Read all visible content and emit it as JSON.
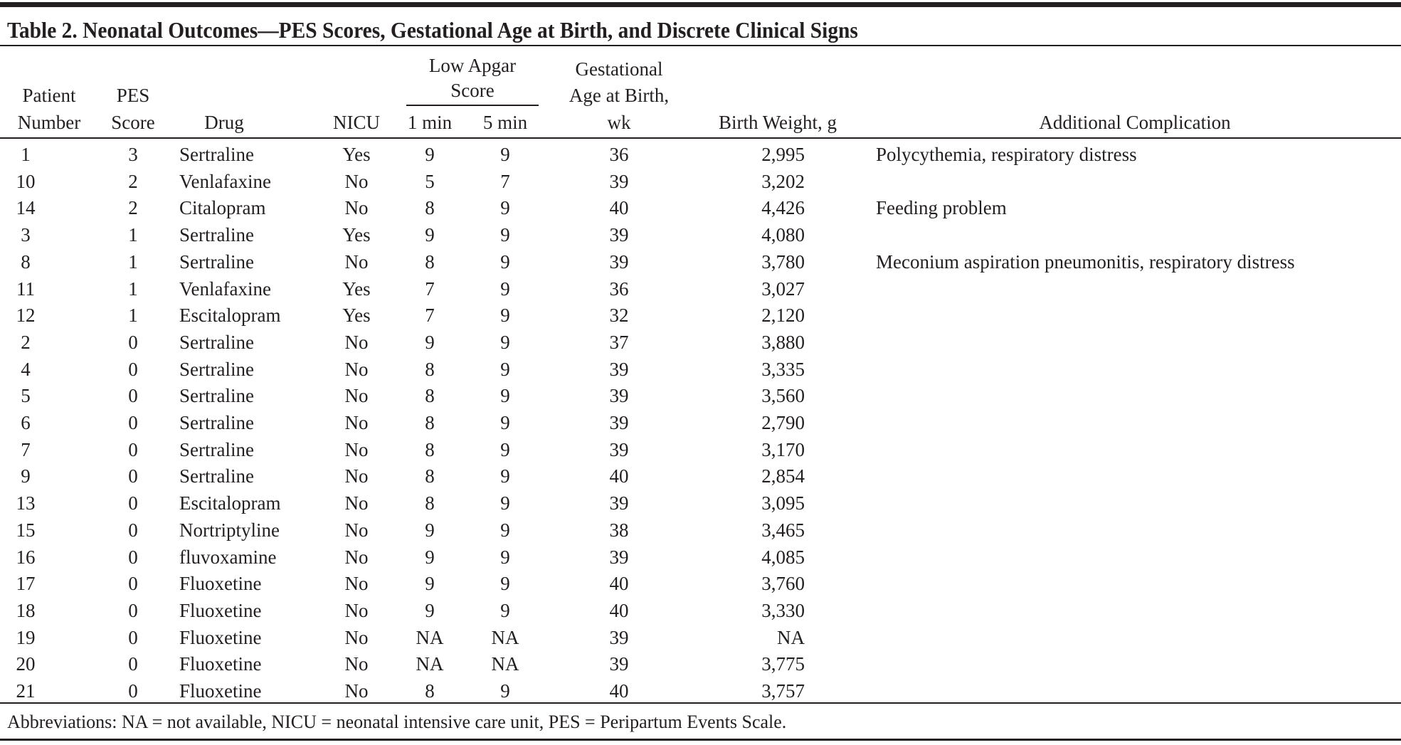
{
  "title": "Table 2. Neonatal Outcomes—PES Scores, Gestational Age at Birth, and Discrete Clinical Signs",
  "headers": {
    "patient": [
      "Patient",
      "Number"
    ],
    "pes": [
      "PES",
      "Score"
    ],
    "drug": "Drug",
    "nicu": "NICU",
    "apgar_group": [
      "Low Apgar",
      "Score"
    ],
    "apgar_1": "1 min",
    "apgar_5": "5 min",
    "ga": [
      "Gestational",
      "Age at Birth,",
      "wk"
    ],
    "weight": "Birth Weight, g",
    "complication": "Additional Complication"
  },
  "rows": [
    [
      "1",
      "3",
      "Sertraline",
      "Yes",
      "9",
      "9",
      "36",
      "2,995",
      "Polycythemia, respiratory distress"
    ],
    [
      "10",
      "2",
      "Venlafaxine",
      "No",
      "5",
      "7",
      "39",
      "3,202",
      ""
    ],
    [
      "14",
      "2",
      "Citalopram",
      "No",
      "8",
      "9",
      "40",
      "4,426",
      "Feeding problem"
    ],
    [
      "3",
      "1",
      "Sertraline",
      "Yes",
      "9",
      "9",
      "39",
      "4,080",
      ""
    ],
    [
      "8",
      "1",
      "Sertraline",
      "No",
      "8",
      "9",
      "39",
      "3,780",
      "Meconium aspiration pneumonitis, respiratory distress"
    ],
    [
      "11",
      "1",
      "Venlafaxine",
      "Yes",
      "7",
      "9",
      "36",
      "3,027",
      ""
    ],
    [
      "12",
      "1",
      "Escitalopram",
      "Yes",
      "7",
      "9",
      "32",
      "2,120",
      ""
    ],
    [
      "2",
      "0",
      "Sertraline",
      "No",
      "9",
      "9",
      "37",
      "3,880",
      ""
    ],
    [
      "4",
      "0",
      "Sertraline",
      "No",
      "8",
      "9",
      "39",
      "3,335",
      ""
    ],
    [
      "5",
      "0",
      "Sertraline",
      "No",
      "8",
      "9",
      "39",
      "3,560",
      ""
    ],
    [
      "6",
      "0",
      "Sertraline",
      "No",
      "8",
      "9",
      "39",
      "2,790",
      ""
    ],
    [
      "7",
      "0",
      "Sertraline",
      "No",
      "8",
      "9",
      "39",
      "3,170",
      ""
    ],
    [
      "9",
      "0",
      "Sertraline",
      "No",
      "8",
      "9",
      "40",
      "2,854",
      ""
    ],
    [
      "13",
      "0",
      "Escitalopram",
      "No",
      "8",
      "9",
      "39",
      "3,095",
      ""
    ],
    [
      "15",
      "0",
      "Nortriptyline",
      "No",
      "9",
      "9",
      "38",
      "3,465",
      ""
    ],
    [
      "16",
      "0",
      "fluvoxamine",
      "No",
      "9",
      "9",
      "39",
      "4,085",
      ""
    ],
    [
      "17",
      "0",
      "Fluoxetine",
      "No",
      "9",
      "9",
      "40",
      "3,760",
      ""
    ],
    [
      "18",
      "0",
      "Fluoxetine",
      "No",
      "9",
      "9",
      "40",
      "3,330",
      ""
    ],
    [
      "19",
      "0",
      "Fluoxetine",
      "No",
      "NA",
      "NA",
      "39",
      "NA",
      ""
    ],
    [
      "20",
      "0",
      "Fluoxetine",
      "No",
      "NA",
      "NA",
      "39",
      "3,775",
      ""
    ],
    [
      "21",
      "0",
      "Fluoxetine",
      "No",
      "8",
      "9",
      "40",
      "3,757",
      ""
    ]
  ],
  "footnote": "Abbreviations: NA = not available, NICU = neonatal intensive care unit, PES = Peripartum Events Scale."
}
